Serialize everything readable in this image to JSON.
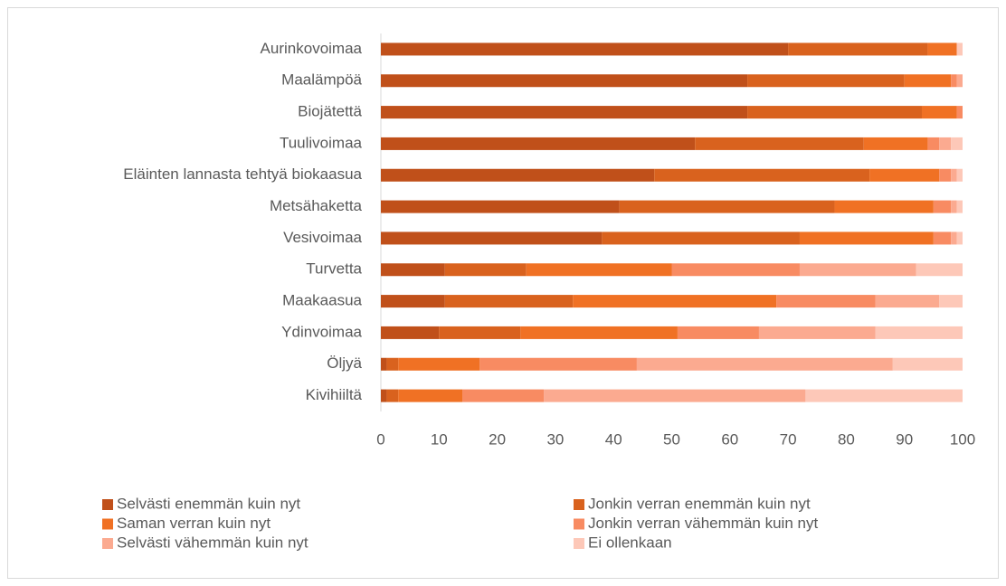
{
  "chart_data": {
    "type": "stacked_barh",
    "categories": [
      "Aurinkovoimaa",
      "Maalämpöä",
      "Biojätettä",
      "Tuulivoimaa",
      "Eläinten lannasta tehtyä biokaasua",
      "Metsähaketta",
      "Vesivoimaa",
      "Turvetta",
      "Maakaasua",
      "Ydinvoimaa",
      "Öljyä",
      "Kivihiiltä"
    ],
    "series": [
      {
        "name": "Selvästi enemmän kuin nyt",
        "color": "#c0501a",
        "values": [
          70,
          63,
          63,
          54,
          47,
          41,
          38,
          11,
          11,
          10,
          1,
          1
        ]
      },
      {
        "name": "Jonkin verran enemmän kuin nyt",
        "color": "#d9621e",
        "values": [
          24,
          27,
          30,
          29,
          37,
          37,
          34,
          14,
          22,
          14,
          2,
          2
        ]
      },
      {
        "name": "Saman verran kuin nyt",
        "color": "#f07124",
        "values": [
          5,
          8,
          6,
          11,
          12,
          17,
          23,
          25,
          35,
          27,
          14,
          11
        ]
      },
      {
        "name": "Jonkin verran vähemmän kuin nyt",
        "color": "#f88b62",
        "values": [
          0,
          1,
          1,
          2,
          2,
          3,
          3,
          22,
          17,
          14,
          27,
          14
        ]
      },
      {
        "name": "Selvästi vähemmän kuin nyt",
        "color": "#fbaa90",
        "values": [
          0,
          1,
          0,
          2,
          1,
          1,
          1,
          20,
          11,
          20,
          44,
          45
        ]
      },
      {
        "name": "Ei ollenkaan",
        "color": "#fdc8b8",
        "values": [
          1,
          0,
          0,
          2,
          1,
          1,
          1,
          8,
          4,
          15,
          12,
          27
        ]
      }
    ],
    "xlim": [
      0,
      100
    ],
    "xticks": [
      0,
      10,
      20,
      30,
      40,
      50,
      60,
      70,
      80,
      90,
      100
    ]
  }
}
